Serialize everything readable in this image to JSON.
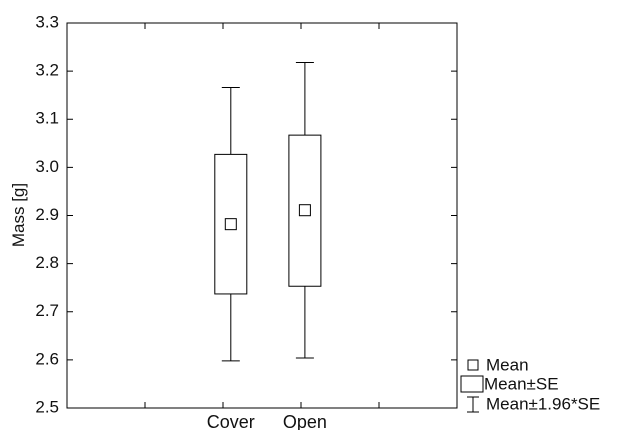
{
  "chart_data": {
    "type": "box",
    "title": "",
    "xlabel": "",
    "ylabel": "Mass [g]",
    "ylim": [
      2.5,
      3.3
    ],
    "yticks": [
      "2.5",
      "2.6",
      "2.7",
      "2.8",
      "2.9",
      "3.0",
      "3.1",
      "3.2",
      "3.3"
    ],
    "categories": [
      "Cover",
      "Open"
    ],
    "groups": [
      {
        "category": "Cover",
        "mean": 2.882,
        "se_low": 2.737,
        "se_high": 3.027,
        "ci_low": 2.598,
        "ci_high": 3.166
      },
      {
        "category": "Open",
        "mean": 2.911,
        "se_low": 2.753,
        "se_high": 3.067,
        "ci_low": 2.604,
        "ci_high": 3.218
      }
    ],
    "legend": {
      "position": "bottom-right",
      "items": [
        "Mean",
        "Mean±SE",
        "Mean±1.96*SE"
      ]
    },
    "grid": false
  }
}
